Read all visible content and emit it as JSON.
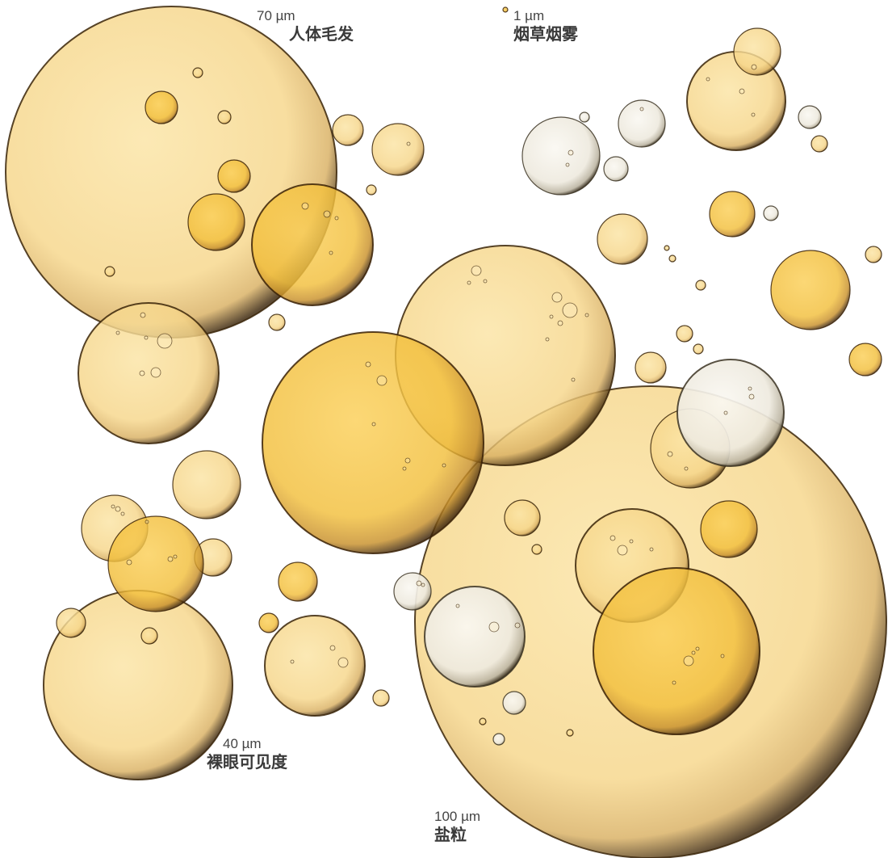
{
  "labels": {
    "hair": {
      "size": "70 µm",
      "name": "人体毛发"
    },
    "smoke": {
      "size": "1 µm",
      "name": "烟草烟雾"
    },
    "naked_eye": {
      "size": "40 µm",
      "name": "裸眼可见度"
    },
    "salt": {
      "size": "100 µm",
      "name": "盐粒"
    }
  },
  "colors": {
    "gold": "#f6c94a",
    "pale": "#fbe2a0",
    "white": "#f6f3ec",
    "rim": "#2a1a08"
  }
}
